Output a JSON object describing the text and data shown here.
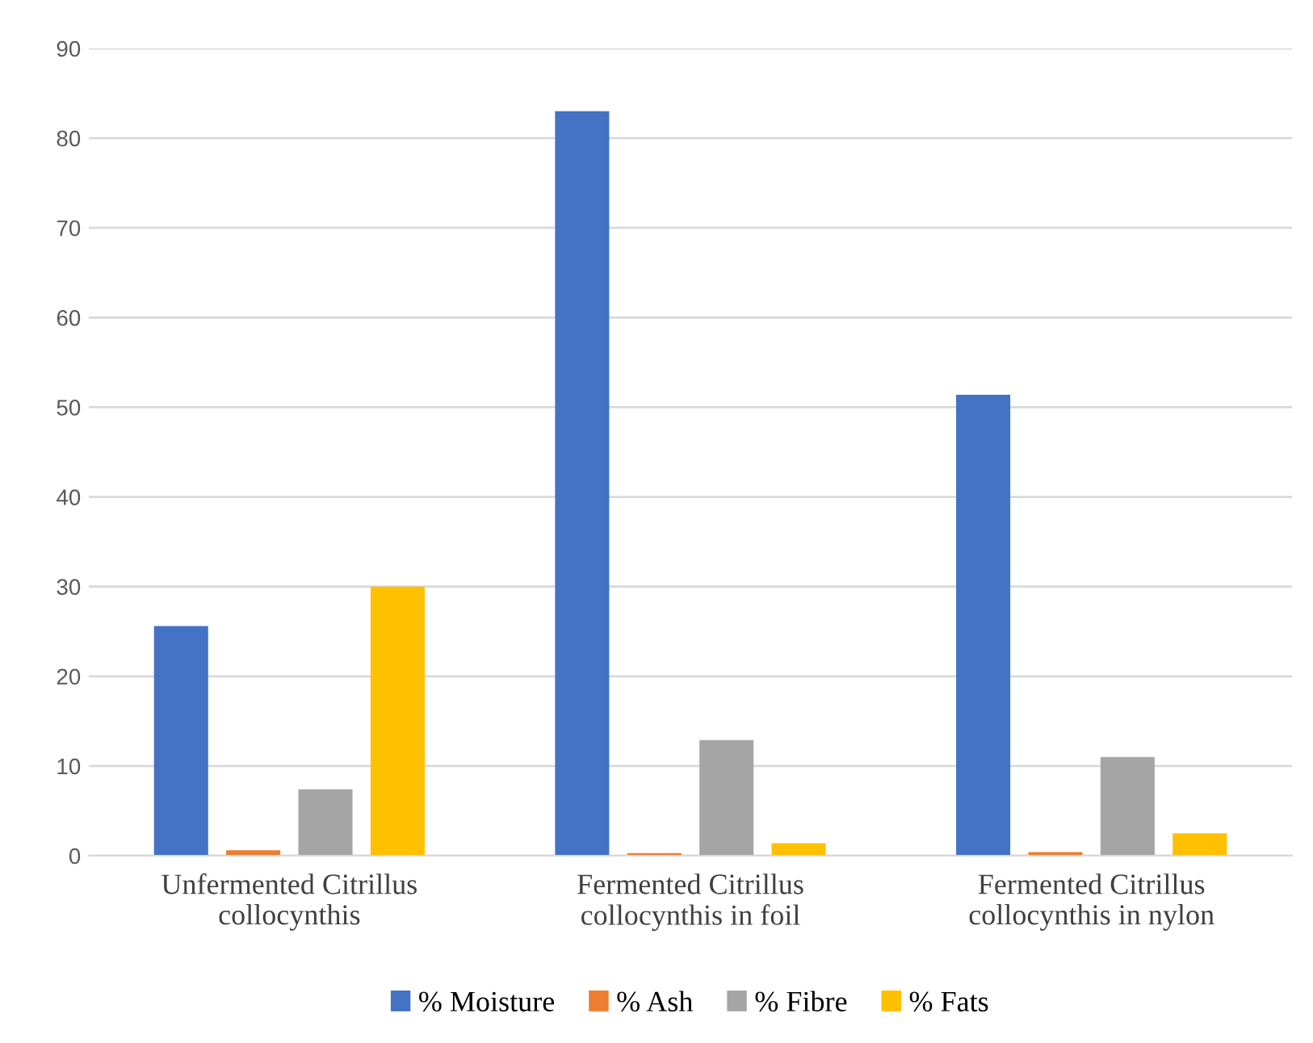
{
  "chart_data": {
    "type": "bar",
    "categories": [
      "Unfermented Citrillus\ncollocynthis",
      "Fermented Citrillus\ncollocynthis in foil",
      "Fermented Citrillus\ncollocynthis in nylon"
    ],
    "series": [
      {
        "name": "% Moisture",
        "color": "#4472c4",
        "values": [
          25.6,
          83.0,
          51.4
        ]
      },
      {
        "name": "% Ash",
        "color": "#ed7d31",
        "values": [
          0.6,
          0.3,
          0.4
        ]
      },
      {
        "name": "% Fibre",
        "color": "#a5a5a5",
        "values": [
          7.4,
          12.9,
          11.0
        ]
      },
      {
        "name": "% Fats",
        "color": "#ffc000",
        "values": [
          30.0,
          1.4,
          2.5
        ]
      }
    ],
    "ylim": [
      0,
      90
    ],
    "yticks": [
      0,
      10,
      20,
      30,
      40,
      50,
      60,
      70,
      80,
      90
    ],
    "grid": "y",
    "legend": "bottom"
  }
}
